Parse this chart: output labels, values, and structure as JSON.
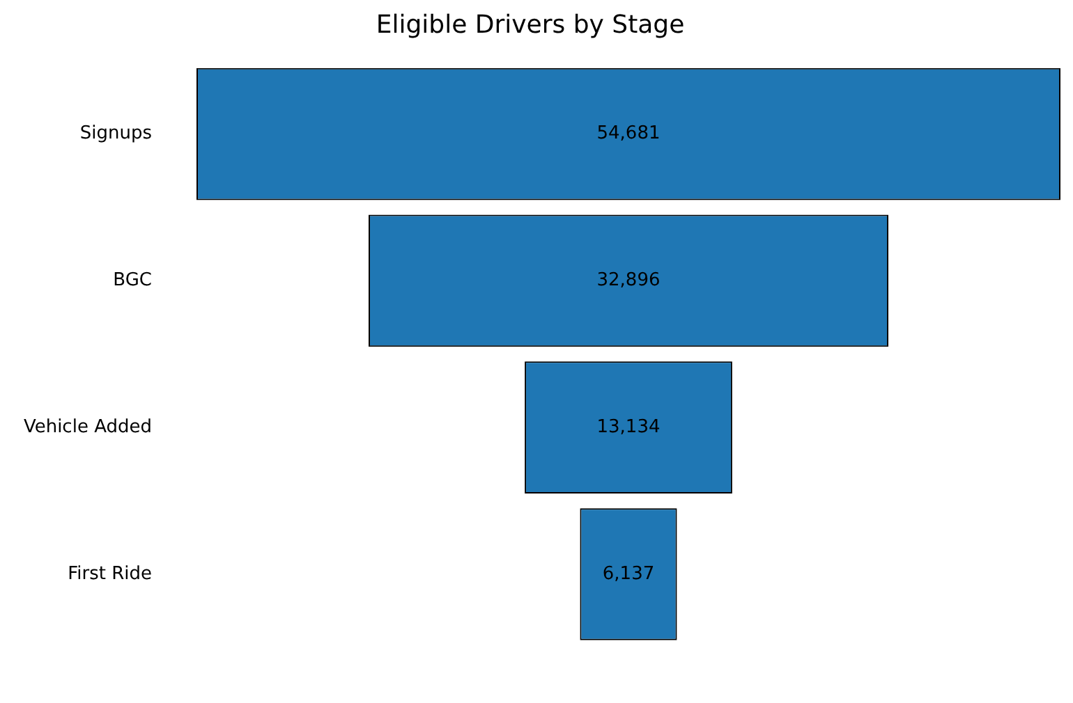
{
  "chart_data": {
    "type": "other",
    "title": "Eligible Drivers by Stage",
    "categories": [
      "Signups",
      "BGC",
      "Vehicle Added",
      "First Ride"
    ],
    "values": [
      54681,
      32896,
      13134,
      6137
    ],
    "value_labels": [
      "54,681",
      "32,896",
      "13,134",
      "6,137"
    ],
    "color": "#1f77b4"
  }
}
